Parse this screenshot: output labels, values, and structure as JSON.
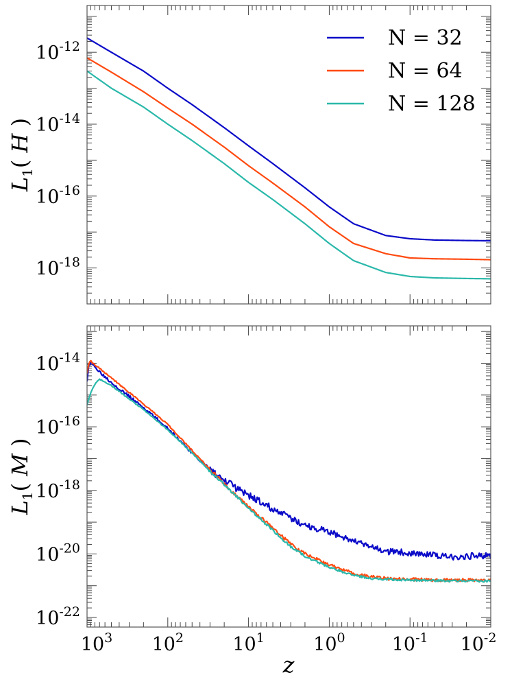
{
  "figure": {
    "xlabel": "z",
    "x_tick_labels": [
      {
        "base": "10",
        "exp": "3",
        "value": 1000
      },
      {
        "base": "10",
        "exp": "2",
        "value": 100
      },
      {
        "base": "10",
        "exp": "1",
        "value": 10
      },
      {
        "base": "10",
        "exp": "0",
        "value": 1
      },
      {
        "base": "10",
        "exp": "-1",
        "value": 0.1
      },
      {
        "base": "10",
        "exp": "-2",
        "value": 0.01
      }
    ]
  },
  "colors": {
    "n32": "#0a0ac8",
    "n64": "#ff4a10",
    "n128": "#2ab8aa",
    "frame": "#555555"
  },
  "chart_data": [
    {
      "type": "line",
      "ylabel_main": "L",
      "ylabel_sub": "1",
      "ylabel_arg": "H",
      "xscale": "log",
      "yscale": "log",
      "xlim": [
        1000,
        0.01
      ],
      "ylim": [
        1e-19,
        2e-11
      ],
      "y_tick_labels": [
        {
          "base": "10",
          "exp": "-12",
          "value": 1e-12
        },
        {
          "base": "10",
          "exp": "-14",
          "value": 1e-14
        },
        {
          "base": "10",
          "exp": "-16",
          "value": 1e-16
        },
        {
          "base": "10",
          "exp": "-18",
          "value": 1e-18
        }
      ],
      "legend": {
        "position": "top-right"
      },
      "series": [
        {
          "name": "N = 32",
          "color_key": "n32",
          "x": [
            1000,
            500,
            200,
            100,
            50,
            20,
            10,
            5,
            2,
            1,
            0.5,
            0.2,
            0.1,
            0.05,
            0.02,
            0.01
          ],
          "y": [
            2.5e-12,
            1e-12,
            3e-13,
            1e-13,
            3.5e-14,
            8e-15,
            2.5e-15,
            8e-16,
            1.7e-16,
            5e-17,
            1.7e-17,
            8e-18,
            6.5e-18,
            6e-18,
            5.8e-18,
            5.7e-18
          ]
        },
        {
          "name": "N = 64",
          "color_key": "n64",
          "x": [
            1000,
            500,
            200,
            100,
            50,
            20,
            10,
            5,
            2,
            1,
            0.5,
            0.2,
            0.1,
            0.05,
            0.02,
            0.01
          ],
          "y": [
            7e-13,
            2.8e-13,
            8e-14,
            2.8e-14,
            1e-14,
            2.3e-15,
            7e-16,
            2.3e-16,
            5e-17,
            1.4e-17,
            4.8e-18,
            2.5e-18,
            1.9e-18,
            1.8e-18,
            1.75e-18,
            1.7e-18
          ]
        },
        {
          "name": "N = 128",
          "color_key": "n128",
          "x": [
            1000,
            500,
            200,
            100,
            50,
            20,
            10,
            5,
            2,
            1,
            0.5,
            0.2,
            0.1,
            0.05,
            0.02,
            0.01
          ],
          "y": [
            3e-13,
            1e-13,
            3e-14,
            1e-14,
            3.5e-15,
            8e-16,
            2.4e-16,
            8e-17,
            1.7e-17,
            4.8e-18,
            1.6e-18,
            7.5e-19,
            5.8e-19,
            5.3e-19,
            5.1e-19,
            5e-19
          ]
        }
      ]
    },
    {
      "type": "line",
      "ylabel_main": "L",
      "ylabel_sub": "1",
      "ylabel_arg": "M",
      "xscale": "log",
      "yscale": "log",
      "xlim": [
        1000,
        0.01
      ],
      "ylim": [
        5e-23,
        1.5e-13
      ],
      "y_tick_labels": [
        {
          "base": "10",
          "exp": "-14",
          "value": 1e-14
        },
        {
          "base": "10",
          "exp": "-16",
          "value": 1e-16
        },
        {
          "base": "10",
          "exp": "-18",
          "value": 1e-18
        },
        {
          "base": "10",
          "exp": "-20",
          "value": 1e-20
        },
        {
          "base": "10",
          "exp": "-22",
          "value": 1e-22
        }
      ],
      "series": [
        {
          "name": "N = 32",
          "color_key": "n32",
          "noise": 0.06,
          "x": [
            1000,
            950,
            900,
            800,
            700,
            500,
            300,
            200,
            100,
            50,
            30,
            20,
            10,
            5,
            3,
            2,
            1,
            0.5,
            0.3,
            0.2,
            0.1,
            0.05,
            0.03,
            0.02,
            0.01
          ],
          "y": [
            3e-15,
            9e-15,
            1e-14,
            8e-15,
            5.5e-15,
            2.5e-15,
            9e-16,
            4e-16,
            9e-17,
            1.5e-17,
            4.5e-18,
            2e-18,
            7e-19,
            2.6e-19,
            1.3e-19,
            8e-20,
            5e-20,
            2.5e-20,
            1.6e-20,
            1.2e-20,
            1.1e-20,
            9e-21,
            8e-21,
            8.5e-21,
            9e-21
          ]
        },
        {
          "name": "N = 64",
          "color_key": "n64",
          "noise": 0.03,
          "x": [
            1000,
            950,
            900,
            800,
            700,
            500,
            300,
            200,
            100,
            50,
            30,
            20,
            10,
            5,
            3,
            2,
            1,
            0.5,
            0.3,
            0.2,
            0.1,
            0.05,
            0.03,
            0.02,
            0.01
          ],
          "y": [
            5e-15,
            1e-14,
            1.2e-14,
            9e-15,
            7e-15,
            3.5e-15,
            1.2e-15,
            5.2e-16,
            1.2e-16,
            1.8e-17,
            4.5e-18,
            1.6e-18,
            3e-19,
            6.5e-20,
            2e-20,
            1e-20,
            4.5e-21,
            2.4e-21,
            1.9e-21,
            1.7e-21,
            1.6e-21,
            1.5e-21,
            1.5e-21,
            1.5e-21,
            1.5e-21
          ]
        },
        {
          "name": "N = 128",
          "color_key": "n128",
          "noise": 0.02,
          "x": [
            1000,
            900,
            800,
            700,
            500,
            300,
            200,
            100,
            50,
            30,
            20,
            10,
            5,
            3,
            2,
            1,
            0.5,
            0.3,
            0.2,
            0.1,
            0.05,
            0.03,
            0.02,
            0.01
          ],
          "y": [
            5e-16,
            1.2e-15,
            2.2e-15,
            3.2e-15,
            2e-15,
            7.5e-16,
            3.5e-16,
            8e-17,
            1.5e-17,
            4e-18,
            1.5e-18,
            2.8e-19,
            5.5e-20,
            1.7e-20,
            8.5e-21,
            3.8e-21,
            2.1e-21,
            1.7e-21,
            1.6e-21,
            1.5e-21,
            1.45e-21,
            1.4e-21,
            1.4e-21,
            1.4e-21
          ]
        }
      ]
    }
  ]
}
